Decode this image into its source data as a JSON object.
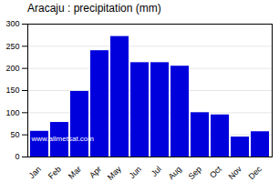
{
  "chart_data": {
    "type": "bar",
    "title": "Aracaju : precipitation (mm)",
    "categories": [
      "Jan",
      "Feb",
      "Mar",
      "Apr",
      "May",
      "Jun",
      "Jul",
      "Aug",
      "Sep",
      "Oct",
      "Nov",
      "Dec"
    ],
    "values": [
      58,
      78,
      148,
      240,
      272,
      213,
      213,
      205,
      100,
      95,
      45,
      57
    ],
    "color": "#0000dd",
    "ylim": [
      0,
      300
    ],
    "yticks": [
      0,
      50,
      100,
      150,
      200,
      250,
      300
    ],
    "grid": true,
    "annotations": [
      "www.allmetsat.com"
    ]
  }
}
